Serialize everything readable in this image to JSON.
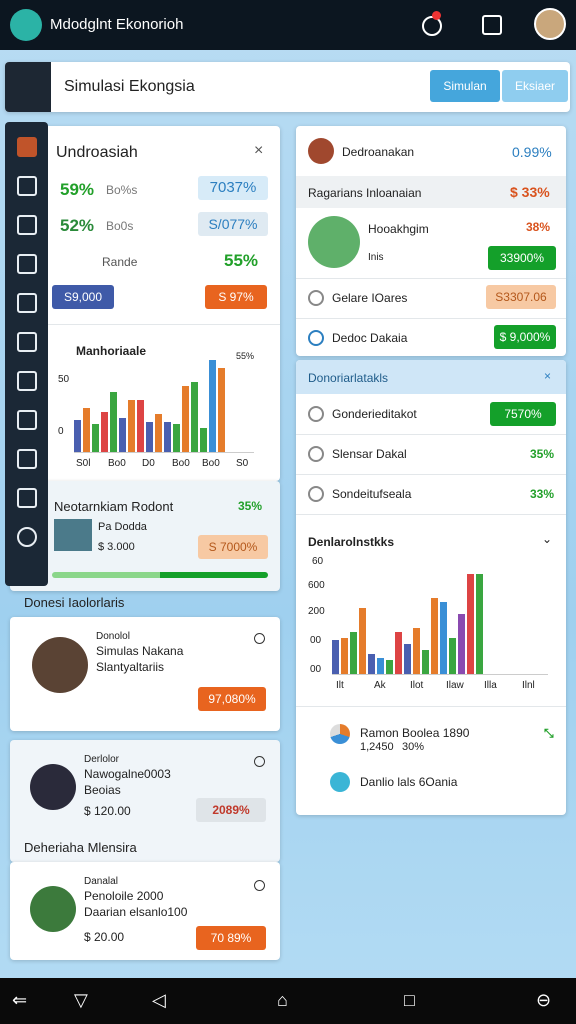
{
  "header": {
    "app_title": "Mdodglnt Ekonorioh"
  },
  "search": {
    "text": "Simulasi Ekongsia",
    "buttons": [
      "Simulan",
      "Eksiaer"
    ]
  },
  "left": {
    "summary": {
      "title": "Undroasiah",
      "rows": [
        [
          "59%",
          "Bo%s",
          "7037%"
        ],
        [
          "52%",
          "Bo0s",
          "S/077%"
        ],
        [
          "Rande",
          "55%"
        ]
      ],
      "buttons": [
        "S9,000",
        "S 97%"
      ]
    },
    "chart": {
      "title": "Manhoriaale",
      "y_labels": [
        "50",
        "0"
      ],
      "top_label": "55%",
      "x_labels": [
        "S0l",
        "Bo0",
        "D0",
        "Bo0",
        "Bo0",
        "S0"
      ]
    },
    "promo": {
      "title": "Neotarnkiam Rodont",
      "value": "35%",
      "name": "Pa Dodda",
      "price": "$ 3.000",
      "badge": "S 7000%"
    },
    "section1": "Donesi Iaolorlaris",
    "person1": {
      "tag": "Donolol",
      "name": "Simulas Nakana",
      "desc": "Slantyaltariis",
      "button": "97,080%"
    },
    "person2": {
      "tag": "Derlolor",
      "name": "Nawogalne0003",
      "desc": "Beoias",
      "price": "$ 120.00",
      "button": "2089%"
    },
    "section2": "Deheriaha Mlensira",
    "person3": {
      "tag": "Danalal",
      "name": "Penoloile 2000",
      "desc": "Daarian elsanlo100",
      "price": "$ 20.00",
      "button": "70 89%"
    }
  },
  "right": {
    "card1": {
      "title": "Dedroanakan",
      "value": "0.99%",
      "sub": "Ragarians Inloanaian",
      "sub_value": "$ 33%",
      "item": {
        "name": "Hooakhgim",
        "value": "38%",
        "desc": "Inis",
        "button": "33900%"
      },
      "rows": [
        [
          "Gelare IOares",
          "S3307.06"
        ],
        [
          "Dedoc Dakaia",
          "$ 9,000%"
        ]
      ]
    },
    "card2": {
      "title": "Donoriarlatakls",
      "rows": [
        [
          "Gonderieditakot",
          "7570%"
        ],
        [
          "Slensar Dakal",
          "35%"
        ],
        [
          "Sondeitufseala",
          "33%"
        ]
      ],
      "chart_title": "Denlarolnstkks",
      "y_labels": [
        "60",
        "600",
        "200",
        "00",
        "00"
      ],
      "x_labels": [
        "Ilt",
        "Ak",
        "Ilot",
        "Ilaw",
        "Illa",
        "Ilnl"
      ],
      "legend": [
        [
          "Ramon Boolea 1890",
          "1,2450",
          "30%"
        ],
        [
          "Danlio lals 6Oania"
        ]
      ]
    }
  }
}
